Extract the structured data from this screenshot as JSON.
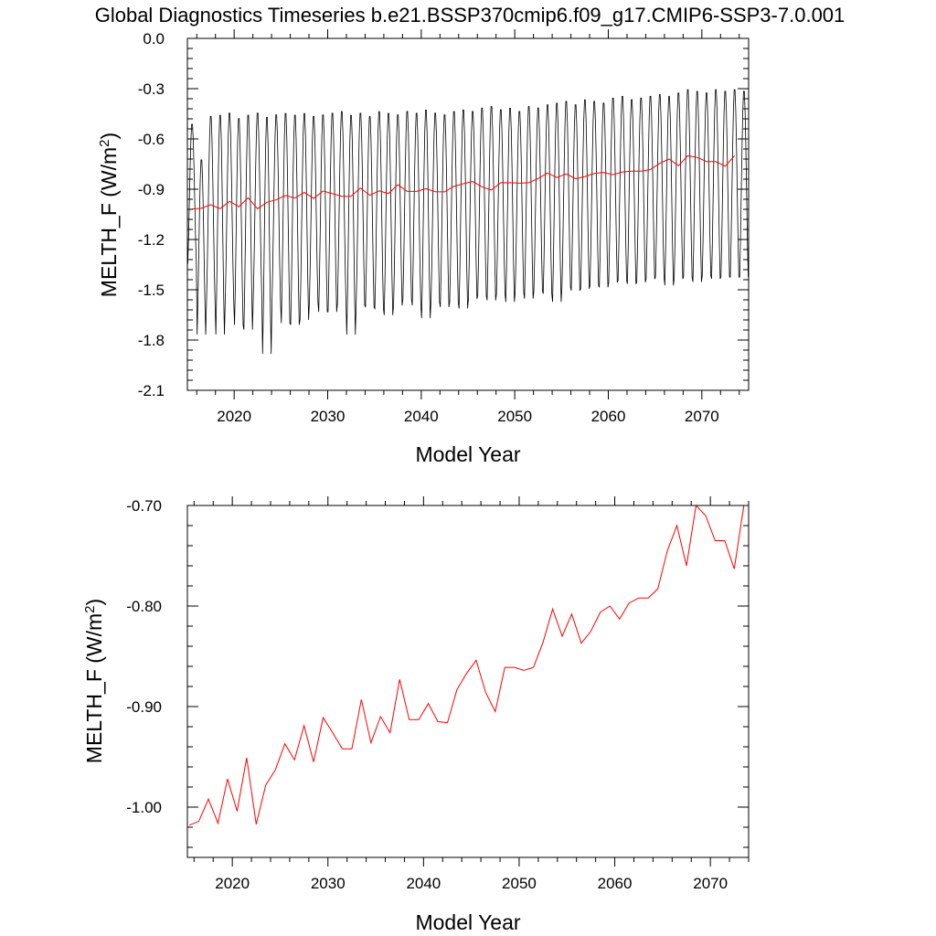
{
  "figure_title": "Global Diagnostics Timeseries b.e21.BSSP370cmip6.f09_g17.CMIP6-SSP3-7.0.001",
  "colors": {
    "monthly_line": "#000000",
    "annual_line": "#ff0000",
    "axes": "#000000"
  },
  "chart_data": [
    {
      "type": "line",
      "xlabel": "Model Year",
      "ylabel": "MELTH_F (W/m",
      "ylabel_sup": "2",
      "ylabel_close": ")",
      "xlim": [
        2015,
        2075
      ],
      "ylim": [
        -2.1,
        0.0
      ],
      "xticks": [
        2020,
        2030,
        2040,
        2050,
        2060,
        2070
      ],
      "xtick_labels": [
        "2020",
        "2030",
        "2040",
        "2050",
        "2060",
        "2070"
      ],
      "yticks": [
        0.0,
        -0.3,
        -0.6,
        -0.9,
        -1.2,
        -1.5,
        -1.8,
        -2.1
      ],
      "ytick_labels": [
        "0.0",
        "-0.3",
        "-0.6",
        "-0.9",
        "-1.2",
        "-1.5",
        "-1.8",
        "-2.1"
      ],
      "series": [
        {
          "color": "#000000",
          "style": "monthly seasonal cycle",
          "x_start": 2015.0,
          "annual_max": [
            -0.5,
            -0.71,
            -0.45,
            -0.44,
            -0.43,
            -0.46,
            -0.44,
            -0.43,
            -0.45,
            -0.44,
            -0.43,
            -0.44,
            -0.43,
            -0.45,
            -0.44,
            -0.43,
            -0.42,
            -0.44,
            -0.43,
            -0.45,
            -0.42,
            -0.43,
            -0.44,
            -0.42,
            -0.43,
            -0.41,
            -0.43,
            -0.44,
            -0.42,
            -0.41,
            -0.42,
            -0.4,
            -0.39,
            -0.41,
            -0.4,
            -0.42,
            -0.39,
            -0.4,
            -0.38,
            -0.37,
            -0.36,
            -0.38,
            -0.35,
            -0.36,
            -0.37,
            -0.34,
            -0.33,
            -0.35,
            -0.34,
            -0.33,
            -0.32,
            -0.33,
            -0.31,
            -0.29,
            -0.3,
            -0.31,
            -0.29,
            -0.3,
            -0.29,
            -0.3,
            -0.27
          ],
          "annual_min": [
            -1.38,
            -1.81,
            -1.62,
            -1.82,
            -1.62,
            -1.76,
            -1.79,
            -1.6,
            -1.94,
            -1.62,
            -1.75,
            -1.76,
            -1.73,
            -1.62,
            -1.68,
            -1.68,
            -1.63,
            -1.82,
            -1.64,
            -1.65,
            -1.66,
            -1.7,
            -1.64,
            -1.6,
            -1.64,
            -1.72,
            -1.62,
            -1.65,
            -1.62,
            -1.66,
            -1.6,
            -1.58,
            -1.61,
            -1.57,
            -1.62,
            -1.56,
            -1.6,
            -1.55,
            -1.57,
            -1.62,
            -1.53,
            -1.55,
            -1.54,
            -1.52,
            -1.53,
            -1.5,
            -1.49,
            -1.51,
            -1.5,
            -1.48,
            -1.47,
            -1.52,
            -1.48,
            -1.47,
            -1.5,
            -1.46,
            -1.48,
            -1.47,
            -1.47,
            -1.47,
            -1.26
          ]
        },
        {
          "color": "#ff0000",
          "style": "annual mean",
          "x": [
            2015.5,
            2016.5,
            2017.5,
            2018.5,
            2019.5,
            2020.5,
            2021.5,
            2022.5,
            2023.5,
            2024.5,
            2025.5,
            2026.5,
            2027.5,
            2028.5,
            2029.5,
            2030.5,
            2031.5,
            2032.5,
            2033.5,
            2034.5,
            2035.5,
            2036.5,
            2037.5,
            2038.5,
            2039.5,
            2040.5,
            2041.5,
            2042.5,
            2043.5,
            2044.5,
            2045.5,
            2046.5,
            2047.5,
            2048.5,
            2049.5,
            2050.5,
            2051.5,
            2052.5,
            2053.5,
            2054.5,
            2055.5,
            2056.5,
            2057.5,
            2058.5,
            2059.5,
            2060.5,
            2061.5,
            2062.5,
            2063.5,
            2064.5,
            2065.5,
            2066.5,
            2067.5,
            2068.5,
            2069.5,
            2070.5,
            2071.5,
            2072.5,
            2073.5
          ],
          "y": [
            -1.018,
            -1.014,
            -0.992,
            -1.016,
            -0.972,
            -1.004,
            -0.951,
            -1.017,
            -0.978,
            -0.963,
            -0.937,
            -0.953,
            -0.919,
            -0.955,
            -0.911,
            -0.926,
            -0.942,
            -0.942,
            -0.893,
            -0.936,
            -0.91,
            -0.926,
            -0.873,
            -0.913,
            -0.913,
            -0.897,
            -0.915,
            -0.916,
            -0.883,
            -0.867,
            -0.854,
            -0.886,
            -0.905,
            -0.861,
            -0.861,
            -0.864,
            -0.861,
            -0.836,
            -0.803,
            -0.83,
            -0.808,
            -0.837,
            -0.825,
            -0.806,
            -0.8,
            -0.813,
            -0.797,
            -0.792,
            -0.792,
            -0.783,
            -0.745,
            -0.72,
            -0.76,
            -0.7,
            -0.71,
            -0.735,
            -0.735,
            -0.763,
            -0.7
          ]
        }
      ]
    },
    {
      "type": "line",
      "xlabel": "Model Year",
      "ylabel": "MELTH_F (W/m",
      "ylabel_sup": "2",
      "ylabel_close": ")",
      "xlim": [
        2015.3,
        2074.0
      ],
      "ylim": [
        -1.05,
        -0.7
      ],
      "xticks": [
        2020,
        2030,
        2040,
        2050,
        2060,
        2070
      ],
      "xtick_labels": [
        "2020",
        "2030",
        "2040",
        "2050",
        "2060",
        "2070"
      ],
      "yticks": [
        -0.7,
        -0.8,
        -0.9,
        -1.0
      ],
      "ytick_labels": [
        "-0.70",
        "-0.80",
        "-0.90",
        "-1.00"
      ],
      "series": [
        {
          "color": "#ff0000",
          "style": "annual mean",
          "x": [
            2015.5,
            2016.5,
            2017.5,
            2018.5,
            2019.5,
            2020.5,
            2021.5,
            2022.5,
            2023.5,
            2024.5,
            2025.5,
            2026.5,
            2027.5,
            2028.5,
            2029.5,
            2030.5,
            2031.5,
            2032.5,
            2033.5,
            2034.5,
            2035.5,
            2036.5,
            2037.5,
            2038.5,
            2039.5,
            2040.5,
            2041.5,
            2042.5,
            2043.5,
            2044.5,
            2045.5,
            2046.5,
            2047.5,
            2048.5,
            2049.5,
            2050.5,
            2051.5,
            2052.5,
            2053.5,
            2054.5,
            2055.5,
            2056.5,
            2057.5,
            2058.5,
            2059.5,
            2060.5,
            2061.5,
            2062.5,
            2063.5,
            2064.5,
            2065.5,
            2066.5,
            2067.5,
            2068.5,
            2069.5,
            2070.5,
            2071.5,
            2072.5,
            2073.5
          ],
          "y": [
            -1.018,
            -1.014,
            -0.992,
            -1.016,
            -0.972,
            -1.004,
            -0.951,
            -1.017,
            -0.978,
            -0.963,
            -0.937,
            -0.953,
            -0.919,
            -0.955,
            -0.911,
            -0.926,
            -0.942,
            -0.942,
            -0.893,
            -0.936,
            -0.91,
            -0.926,
            -0.873,
            -0.913,
            -0.913,
            -0.897,
            -0.915,
            -0.916,
            -0.883,
            -0.867,
            -0.854,
            -0.886,
            -0.905,
            -0.861,
            -0.861,
            -0.864,
            -0.861,
            -0.836,
            -0.803,
            -0.83,
            -0.808,
            -0.837,
            -0.825,
            -0.806,
            -0.8,
            -0.813,
            -0.797,
            -0.792,
            -0.792,
            -0.783,
            -0.745,
            -0.72,
            -0.76,
            -0.7,
            -0.71,
            -0.735,
            -0.735,
            -0.763,
            -0.7
          ]
        }
      ]
    }
  ]
}
